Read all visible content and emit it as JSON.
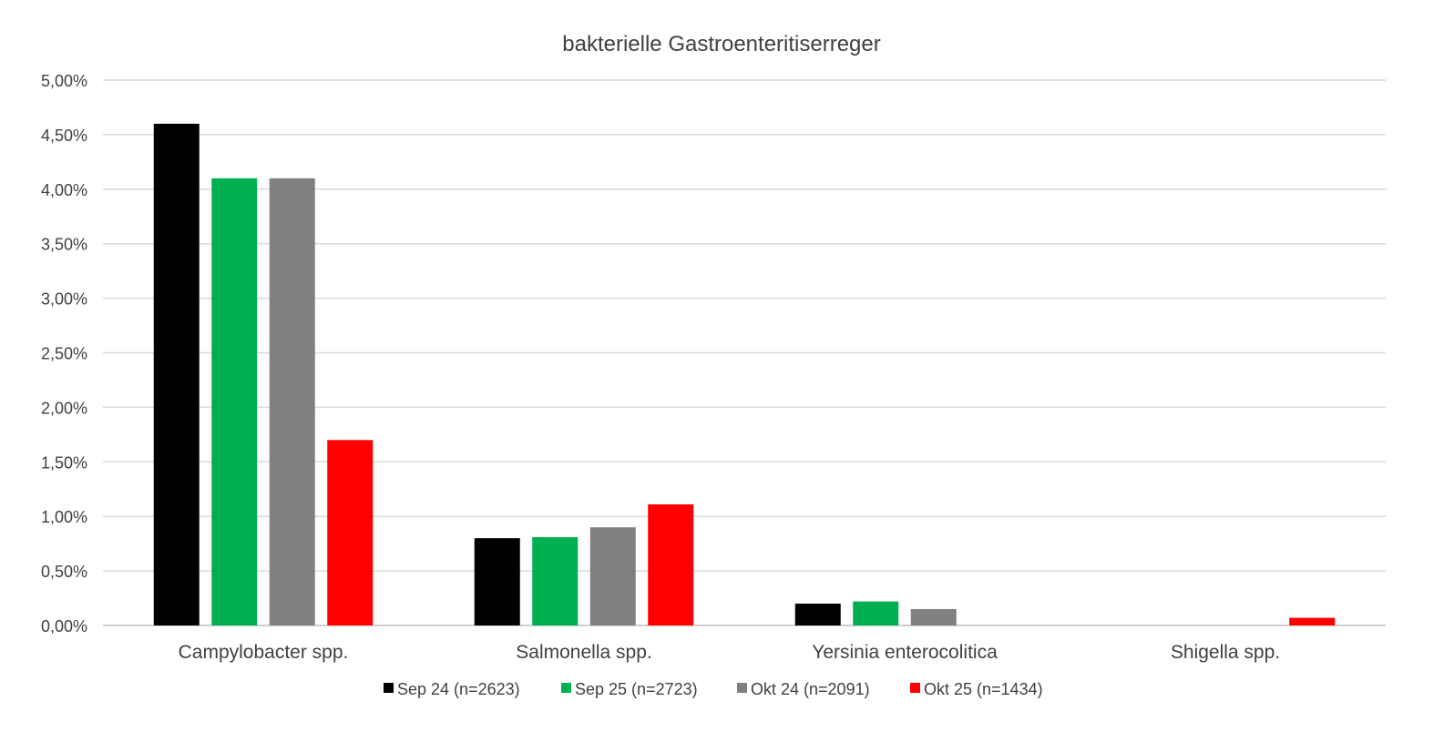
{
  "chart_data": {
    "type": "bar",
    "title": "bakterielle Gastroenteritiserreger",
    "xlabel": "",
    "ylabel": "",
    "categories": [
      "Campylobacter spp.",
      "Salmonella spp.",
      "Yersinia enterocolitica",
      "Shigella spp."
    ],
    "yticks": [
      "0,00%",
      "0,50%",
      "1,00%",
      "1,50%",
      "2,00%",
      "2,50%",
      "3,00%",
      "3,50%",
      "4,00%",
      "4,50%",
      "5,00%"
    ],
    "ylim": [
      0,
      5
    ],
    "grid": true,
    "legend_position": "bottom",
    "series": [
      {
        "name": "Sep 24 (n=2623)",
        "color": "#000000",
        "values": [
          4.6,
          0.8,
          0.2,
          0
        ]
      },
      {
        "name": "Sep 25 (n=2723)",
        "color": "#00b050",
        "values": [
          4.1,
          0.81,
          0.22,
          0
        ]
      },
      {
        "name": "Okt 24 (n=2091)",
        "color": "#808080",
        "values": [
          4.1,
          0.9,
          0.15,
          0
        ]
      },
      {
        "name": "Okt 25 (n=1434)",
        "color": "#ff0000",
        "values": [
          1.7,
          1.11,
          0,
          0.07
        ]
      }
    ]
  }
}
